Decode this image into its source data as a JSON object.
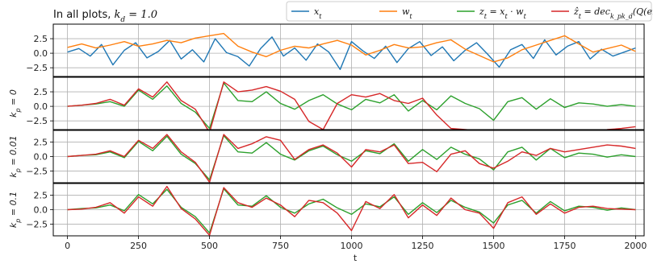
{
  "chart_data": {
    "type": "line",
    "title": "In all plots, k_d = 1.0",
    "xlabel": "t",
    "xlim": [
      -50,
      2030
    ],
    "xticks": [
      0,
      250,
      500,
      750,
      1000,
      1250,
      1500,
      1750,
      2000
    ],
    "grid": true,
    "legend": {
      "placement": "top-right",
      "entries": [
        {
          "label": "x_t",
          "color": "#1f77b4"
        },
        {
          "label": "w_t",
          "color": "#ff7f0e"
        },
        {
          "label": "z_t = x_t · w_t",
          "color": "#2ca02c"
        },
        {
          "label": "ẑ_t = dec_{k_p k_d}(Q(enc_{k_p k_d}(x_t))) · w_t",
          "color": "#d62728"
        }
      ]
    },
    "panels": [
      {
        "ylabel": "",
        "ylim": [
          -4,
          5
        ],
        "yticks": [
          -2.5,
          0.0,
          2.5
        ],
        "series": [
          {
            "name": "x_t",
            "color": "#1f77b4",
            "x": [
              0,
              40,
              80,
              120,
              160,
              200,
              240,
              280,
              320,
              360,
              400,
              440,
              480,
              520,
              560,
              600,
              640,
              680,
              720,
              760,
              800,
              840,
              880,
              920,
              960,
              1000,
              1040,
              1080,
              1120,
              1160,
              1200,
              1240,
              1280,
              1320,
              1360,
              1400,
              1440,
              1480,
              1520,
              1560,
              1600,
              1640,
              1680,
              1720,
              1760,
              1800,
              1840,
              1880,
              1920,
              1960,
              2000
            ],
            "y": [
              0.2,
              0.8,
              -0.5,
              1.5,
              -2.0,
              0.5,
              1.8,
              -0.8,
              0.3,
              2.2,
              -1.0,
              0.6,
              -1.5,
              2.5,
              0.1,
              -0.6,
              -2.2,
              0.8,
              2.8,
              -0.5,
              0.9,
              -1.2,
              1.6,
              0.2,
              -2.8,
              2.0,
              0.4,
              -0.9,
              1.2,
              -1.6,
              0.8,
              2.0,
              -0.4,
              1.1,
              -1.3,
              0.5,
              1.8,
              -0.2,
              -2.4,
              0.6,
              1.5,
              -0.9,
              2.3,
              -0.3,
              1.2,
              2.0,
              -1.0,
              0.7,
              -0.5,
              0.2,
              0.9
            ]
          },
          {
            "name": "w_t",
            "color": "#ff7f0e",
            "x": [
              0,
              50,
              100,
              150,
              200,
              250,
              300,
              350,
              400,
              450,
              500,
              550,
              600,
              650,
              700,
              750,
              800,
              850,
              900,
              950,
              1000,
              1050,
              1100,
              1150,
              1200,
              1250,
              1300,
              1350,
              1400,
              1450,
              1500,
              1550,
              1600,
              1650,
              1700,
              1750,
              1800,
              1850,
              1900,
              1950,
              2000
            ],
            "y": [
              1.0,
              1.6,
              0.9,
              1.4,
              2.0,
              1.2,
              1.6,
              2.2,
              1.8,
              2.6,
              3.0,
              3.4,
              1.2,
              0.2,
              -0.6,
              0.5,
              1.2,
              0.9,
              1.6,
              2.2,
              1.4,
              -0.3,
              0.5,
              1.5,
              0.9,
              1.1,
              1.8,
              2.3,
              0.7,
              -0.4,
              -1.5,
              -0.8,
              0.6,
              1.4,
              2.2,
              3.0,
              1.6,
              0.2,
              0.8,
              1.4,
              0.3
            ]
          }
        ]
      },
      {
        "ylabel": "k_p = 0",
        "ylim": [
          -4,
          5
        ],
        "yticks": [
          -2.5,
          0.0,
          2.5
        ],
        "series": [
          {
            "name": "z_t",
            "color": "#2ca02c",
            "x": [
              0,
              50,
              100,
              150,
              200,
              250,
              300,
              350,
              400,
              450,
              500,
              550,
              600,
              650,
              700,
              750,
              800,
              850,
              900,
              950,
              1000,
              1050,
              1100,
              1150,
              1200,
              1250,
              1300,
              1350,
              1400,
              1450,
              1500,
              1550,
              1600,
              1650,
              1700,
              1750,
              1800,
              1850,
              1900,
              1950,
              2000
            ],
            "y": [
              0.0,
              0.2,
              0.4,
              0.8,
              0.0,
              2.8,
              1.2,
              3.5,
              0.5,
              -1.0,
              -3.8,
              4.0,
              1.0,
              0.8,
              2.5,
              0.5,
              -0.5,
              1.0,
              2.0,
              0.4,
              -0.6,
              1.2,
              0.6,
              2.0,
              -0.8,
              1.0,
              -0.6,
              1.8,
              0.5,
              -0.4,
              -2.4,
              0.8,
              1.5,
              -0.5,
              1.3,
              -0.2,
              0.6,
              0.4,
              0.0,
              0.3,
              0.0
            ]
          },
          {
            "name": "ẑ_t",
            "color": "#d62728",
            "x": [
              0,
              50,
              100,
              150,
              200,
              250,
              300,
              350,
              400,
              450,
              500,
              550,
              600,
              650,
              700,
              750,
              800,
              850,
              900,
              950,
              1000,
              1050,
              1100,
              1150,
              1200,
              1250,
              1300,
              1350,
              1400,
              1450,
              1500,
              1550,
              1600,
              1650,
              1700,
              1750,
              1800,
              1850,
              1900,
              1950,
              2000
            ],
            "y": [
              0.0,
              0.2,
              0.5,
              1.2,
              0.2,
              3.0,
              1.6,
              4.2,
              1.0,
              -0.5,
              -4.5,
              4.2,
              2.5,
              2.8,
              3.4,
              2.6,
              1.2,
              -2.6,
              -4.0,
              0.5,
              2.0,
              1.6,
              2.2,
              1.0,
              0.5,
              1.4,
              -1.5,
              -3.8,
              -4.0,
              -4.2,
              -4.2,
              -4.2,
              -4.5,
              -4.5,
              -4.5,
              -4.5,
              -4.5,
              -4.5,
              -4.0,
              -3.8,
              -3.5
            ]
          }
        ]
      },
      {
        "ylabel": "k_p = 0.01",
        "ylim": [
          -4.5,
          4.5
        ],
        "yticks": [
          -2.5,
          0.0,
          2.5
        ],
        "series": [
          {
            "name": "z_t",
            "color": "#2ca02c",
            "x": [
              0,
              50,
              100,
              150,
              200,
              250,
              300,
              350,
              400,
              450,
              500,
              550,
              600,
              650,
              700,
              750,
              800,
              850,
              900,
              950,
              1000,
              1050,
              1100,
              1150,
              1200,
              1250,
              1300,
              1350,
              1400,
              1450,
              1500,
              1550,
              1600,
              1650,
              1700,
              1750,
              1800,
              1850,
              1900,
              1950,
              2000
            ],
            "y": [
              0.0,
              0.2,
              0.3,
              0.8,
              -0.2,
              2.6,
              1.0,
              3.5,
              0.4,
              -1.2,
              -4.0,
              3.6,
              0.8,
              0.6,
              2.4,
              0.4,
              -0.6,
              1.0,
              1.8,
              0.3,
              -0.8,
              1.0,
              0.5,
              2.2,
              -0.8,
              1.2,
              -0.5,
              1.6,
              0.4,
              -0.4,
              -2.3,
              0.8,
              1.6,
              -0.6,
              1.4,
              -0.2,
              0.6,
              0.4,
              -0.1,
              0.3,
              0.0
            ]
          },
          {
            "name": "ẑ_t",
            "color": "#d62728",
            "x": [
              0,
              50,
              100,
              150,
              200,
              250,
              300,
              350,
              400,
              450,
              500,
              550,
              600,
              650,
              700,
              750,
              800,
              850,
              900,
              950,
              1000,
              1050,
              1100,
              1150,
              1200,
              1250,
              1300,
              1350,
              1400,
              1450,
              1500,
              1550,
              1600,
              1650,
              1700,
              1750,
              1800,
              1850,
              1900,
              1950,
              2000
            ],
            "y": [
              0.0,
              0.2,
              0.4,
              1.0,
              0.0,
              2.8,
              1.4,
              3.8,
              0.8,
              -1.0,
              -4.4,
              3.8,
              1.4,
              2.2,
              3.4,
              2.8,
              -0.5,
              1.2,
              2.0,
              0.6,
              -1.8,
              1.2,
              0.8,
              2.0,
              -1.2,
              -1.0,
              -2.6,
              0.4,
              1.0,
              -1.2,
              -2.0,
              -0.8,
              0.8,
              0.2,
              1.4,
              0.8,
              1.2,
              1.6,
              2.0,
              1.8,
              1.4
            ]
          }
        ]
      },
      {
        "ylabel": "k_p = 0.1",
        "ylim": [
          -4.5,
          4.5
        ],
        "yticks": [
          -2.5,
          0.0,
          2.5
        ],
        "series": [
          {
            "name": "z_t",
            "color": "#2ca02c",
            "x": [
              0,
              50,
              100,
              150,
              200,
              250,
              300,
              350,
              400,
              450,
              500,
              550,
              600,
              650,
              700,
              750,
              800,
              850,
              900,
              950,
              1000,
              1050,
              1100,
              1150,
              1200,
              1250,
              1300,
              1350,
              1400,
              1450,
              1500,
              1550,
              1600,
              1650,
              1700,
              1750,
              1800,
              1850,
              1900,
              1950,
              2000
            ],
            "y": [
              0.0,
              0.2,
              0.3,
              0.8,
              -0.2,
              2.6,
              1.0,
              3.5,
              0.4,
              -1.2,
              -4.0,
              3.6,
              0.8,
              0.6,
              2.4,
              0.4,
              -0.6,
              1.0,
              1.8,
              0.3,
              -0.8,
              1.0,
              0.5,
              2.2,
              -0.8,
              1.2,
              -0.5,
              1.6,
              0.4,
              -0.4,
              -2.3,
              0.8,
              1.6,
              -0.6,
              1.4,
              -0.2,
              0.6,
              0.4,
              -0.1,
              0.3,
              0.0
            ]
          },
          {
            "name": "ẑ_t",
            "color": "#d62728",
            "x": [
              0,
              50,
              100,
              150,
              200,
              250,
              300,
              350,
              400,
              450,
              500,
              550,
              600,
              650,
              700,
              750,
              800,
              850,
              900,
              950,
              1000,
              1050,
              1100,
              1150,
              1200,
              1250,
              1300,
              1350,
              1400,
              1450,
              1500,
              1550,
              1600,
              1650,
              1700,
              1750,
              1800,
              1850,
              1900,
              1950,
              2000
            ],
            "y": [
              0.0,
              0.1,
              0.4,
              1.2,
              -0.6,
              2.2,
              0.6,
              4.0,
              0.2,
              -1.6,
              -4.4,
              3.8,
              1.2,
              0.4,
              2.0,
              0.8,
              -1.2,
              1.6,
              1.2,
              -0.6,
              -3.6,
              1.4,
              0.2,
              2.6,
              -1.4,
              0.8,
              -1.0,
              2.0,
              0.0,
              -0.6,
              -3.2,
              1.2,
              2.2,
              -0.8,
              1.0,
              -0.6,
              0.4,
              0.6,
              0.2,
              0.1,
              0.0
            ]
          }
        ]
      }
    ]
  }
}
